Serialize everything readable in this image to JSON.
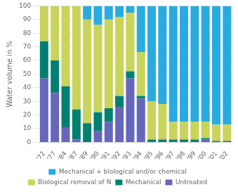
{
  "chart_data": {
    "type": "bar",
    "stacked": true,
    "categories": [
      "'72",
      "'77",
      "'84",
      "'87",
      "'89",
      "'90",
      "'91",
      "'92",
      "'93",
      "'94",
      "'95",
      "'96",
      "'97",
      "'98",
      "'99",
      "'00",
      "'01",
      "'02"
    ],
    "series": [
      {
        "name": "Untreated",
        "color": "#6666BB",
        "values": [
          47,
          36,
          11,
          2,
          0,
          8,
          15,
          26,
          47,
          32,
          0,
          0,
          0,
          0,
          0,
          2,
          0,
          0
        ]
      },
      {
        "name": "Mechanical",
        "color": "#008070",
        "values": [
          27,
          24,
          30,
          22,
          14,
          14,
          10,
          8,
          5,
          2,
          2,
          2,
          2,
          2,
          2,
          1,
          1,
          1
        ]
      },
      {
        "name": "Biological removal of N",
        "color": "#C8D45A",
        "values": [
          26,
          40,
          59,
          76,
          76,
          64,
          65,
          58,
          43,
          32,
          28,
          26,
          13,
          13,
          13,
          12,
          12,
          12
        ]
      },
      {
        "name": "Mechanical + biological and/or chemical",
        "color": "#29ABE2",
        "values": [
          0,
          0,
          0,
          0,
          10,
          14,
          10,
          8,
          5,
          34,
          70,
          72,
          85,
          85,
          85,
          85,
          87,
          87
        ]
      }
    ],
    "ylabel": "Water volume in %",
    "ylim": [
      0,
      100
    ],
    "yticks": [
      0,
      10,
      20,
      30,
      40,
      50,
      60,
      70,
      80,
      90,
      100
    ],
    "grid": true,
    "legend": "bottom"
  }
}
